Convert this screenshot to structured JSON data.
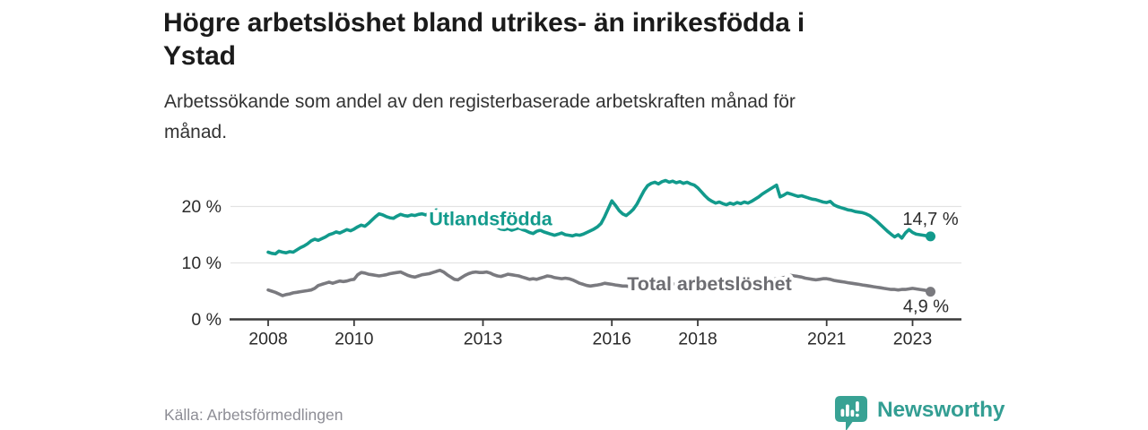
{
  "header": {
    "title": "Högre arbetslöshet bland utrikes- än inrikesfödda i\nYstad",
    "subtitle": "Arbetssökande som andel av den registerbaserade arbetskraften månad för\nmånad."
  },
  "footer": {
    "source": "Källa: Arbetsförmedlingen",
    "logo_text": "Newsworthy"
  },
  "colors": {
    "teal": "#129a8c",
    "gray": "#7a7a7f",
    "gray_label": "#6d6d72",
    "grid": "#e3e3e3",
    "axis": "#3a3a3a",
    "text": "#2b2b2b",
    "logo_teal": "#38a294"
  },
  "chart_data": {
    "type": "line",
    "title": "Högre arbetslöshet bland utrikes- än inrikesfödda i Ystad",
    "subtitle": "Arbetssökande som andel av den registerbaserade arbetskraften månad för månad.",
    "x_unit": "year-month",
    "x_range": [
      2008.0,
      2023.42
    ],
    "y_range": [
      0,
      26
    ],
    "grid": "horizontal",
    "legend_position": "inline-labels",
    "y_ticks": [
      {
        "value": 0,
        "label": "0 %"
      },
      {
        "value": 10,
        "label": "10 %"
      },
      {
        "value": 20,
        "label": "20 %"
      }
    ],
    "x_ticks": [
      {
        "year": 2008,
        "label": "2008"
      },
      {
        "year": 2010,
        "label": "2010"
      },
      {
        "year": 2013,
        "label": "2013"
      },
      {
        "year": 2016,
        "label": "2016"
      },
      {
        "year": 2018,
        "label": "2018"
      },
      {
        "year": 2021,
        "label": "2021"
      },
      {
        "year": 2023,
        "label": "2023"
      }
    ],
    "series": [
      {
        "id": "utlandsfodda",
        "name": "Utlandsfödda",
        "color": "#129a8c",
        "end_label": "14,7 %",
        "end_value": 14.7,
        "start_year": 2008,
        "step_months": 1,
        "values": [
          11.9,
          11.7,
          11.6,
          12.1,
          11.9,
          11.8,
          12.0,
          11.9,
          12.3,
          12.7,
          13.0,
          13.4,
          13.9,
          14.2,
          14.0,
          14.3,
          14.6,
          15.0,
          15.2,
          15.5,
          15.3,
          15.6,
          15.9,
          15.7,
          16.0,
          16.4,
          16.7,
          16.5,
          17.0,
          17.6,
          18.2,
          18.7,
          18.5,
          18.2,
          18.0,
          17.9,
          18.3,
          18.6,
          18.4,
          18.3,
          18.5,
          18.4,
          18.6,
          18.7,
          18.5,
          18.8,
          19.1,
          19.4,
          19.1,
          18.8,
          18.7,
          18.9,
          18.7,
          18.6,
          18.7,
          18.5,
          18.6,
          18.4,
          18.2,
          18.0,
          17.7,
          17.4,
          17.0,
          16.6,
          16.3,
          16.0,
          15.9,
          16.1,
          15.8,
          16.0,
          16.2,
          15.9,
          15.7,
          15.4,
          15.2,
          15.6,
          15.8,
          15.5,
          15.3,
          15.1,
          14.9,
          15.1,
          15.3,
          15.0,
          14.9,
          14.8,
          15.0,
          14.9,
          15.1,
          15.4,
          15.7,
          16.0,
          16.4,
          17.0,
          18.2,
          19.6,
          21.0,
          20.2,
          19.3,
          18.7,
          18.4,
          18.9,
          19.5,
          20.4,
          21.6,
          22.8,
          23.7,
          24.1,
          24.3,
          24.0,
          24.4,
          24.6,
          24.3,
          24.5,
          24.2,
          24.4,
          24.1,
          24.3,
          24.0,
          23.8,
          23.3,
          22.6,
          21.9,
          21.3,
          20.9,
          20.6,
          20.8,
          20.5,
          20.3,
          20.6,
          20.4,
          20.7,
          20.5,
          20.8,
          20.6,
          20.9,
          21.3,
          21.7,
          22.2,
          22.6,
          23.0,
          23.4,
          23.8,
          21.7,
          22.0,
          22.4,
          22.2,
          22.0,
          21.8,
          21.9,
          21.7,
          21.5,
          21.3,
          21.2,
          21.0,
          20.8,
          20.7,
          20.9,
          20.3,
          20.0,
          19.8,
          19.6,
          19.4,
          19.3,
          19.1,
          19.0,
          18.9,
          18.7,
          18.4,
          17.9,
          17.4,
          16.8,
          16.2,
          15.6,
          15.1,
          14.6,
          15.0,
          14.4,
          15.3,
          15.9,
          15.4,
          15.1,
          15.0,
          14.9,
          14.8,
          14.7
        ]
      },
      {
        "id": "total",
        "name": "Total arbetslöshet",
        "color": "#7a7a7f",
        "end_label": "4,9 %",
        "end_value": 4.9,
        "start_year": 2008,
        "step_months": 1,
        "values": [
          5.2,
          5.0,
          4.8,
          4.5,
          4.2,
          4.4,
          4.5,
          4.7,
          4.8,
          4.9,
          5.0,
          5.1,
          5.2,
          5.5,
          6.0,
          6.2,
          6.4,
          6.6,
          6.4,
          6.6,
          6.8,
          6.7,
          6.8,
          7.0,
          7.1,
          7.9,
          8.3,
          8.2,
          8.0,
          7.9,
          7.8,
          7.7,
          7.8,
          7.9,
          8.1,
          8.2,
          8.3,
          8.4,
          8.1,
          7.8,
          7.6,
          7.5,
          7.7,
          7.9,
          8.0,
          8.1,
          8.3,
          8.5,
          8.7,
          8.4,
          7.9,
          7.5,
          7.1,
          7.0,
          7.4,
          7.8,
          8.1,
          8.3,
          8.4,
          8.3,
          8.3,
          8.4,
          8.2,
          7.9,
          7.7,
          7.6,
          7.8,
          8.0,
          7.9,
          7.8,
          7.7,
          7.5,
          7.3,
          7.1,
          7.2,
          7.1,
          7.3,
          7.5,
          7.7,
          7.6,
          7.4,
          7.3,
          7.2,
          7.3,
          7.2,
          7.0,
          6.7,
          6.4,
          6.2,
          6.0,
          5.9,
          6.0,
          6.1,
          6.2,
          6.4,
          6.3,
          6.2,
          6.1,
          6.0,
          5.9,
          5.9,
          5.8,
          5.9,
          6.0,
          6.0,
          6.1,
          6.1,
          6.2,
          6.2,
          6.3,
          6.4,
          6.4,
          6.3,
          6.3,
          6.2,
          6.2,
          6.1,
          6.1,
          6.2,
          6.2,
          6.1,
          6.0,
          6.0,
          6.1,
          6.1,
          6.2,
          6.2,
          6.3,
          6.3,
          6.4,
          6.4,
          6.5,
          6.5,
          6.6,
          6.6,
          6.7,
          6.7,
          6.8,
          6.9,
          7.0,
          7.0,
          7.1,
          7.2,
          7.3,
          7.4,
          7.6,
          7.8,
          7.7,
          7.6,
          7.5,
          7.3,
          7.2,
          7.1,
          7.0,
          7.1,
          7.2,
          7.2,
          7.1,
          6.9,
          6.8,
          6.7,
          6.6,
          6.5,
          6.4,
          6.3,
          6.2,
          6.1,
          6.0,
          5.9,
          5.8,
          5.7,
          5.6,
          5.5,
          5.4,
          5.3,
          5.3,
          5.2,
          5.3,
          5.3,
          5.4,
          5.5,
          5.4,
          5.3,
          5.2,
          5.1,
          4.9
        ]
      }
    ]
  }
}
